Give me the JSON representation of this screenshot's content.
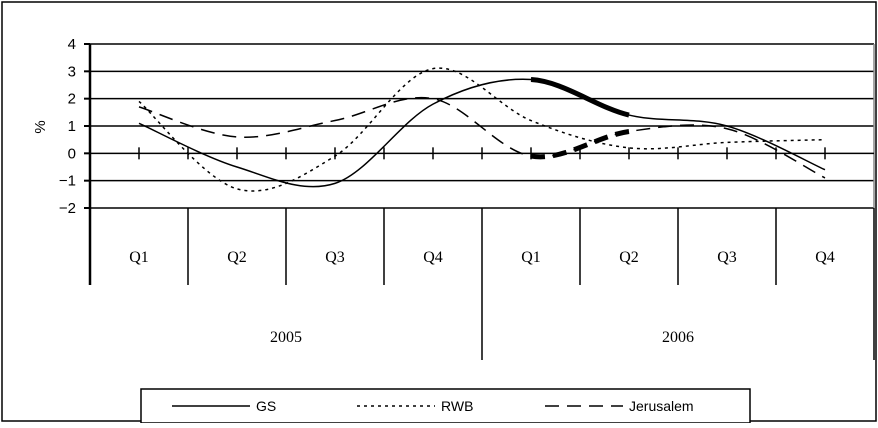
{
  "chart_data": {
    "type": "line",
    "ylabel": "%",
    "ylim": [
      -2,
      4
    ],
    "yticks": [
      -2,
      -1,
      0,
      1,
      2,
      3,
      4
    ],
    "ytick_labels": [
      "−2",
      "−1",
      "0",
      "1",
      "2",
      "3",
      "4"
    ],
    "grid": true,
    "categories": [
      "Q1",
      "Q2",
      "Q3",
      "Q4",
      "Q1",
      "Q2",
      "Q3",
      "Q4"
    ],
    "groups": [
      {
        "label": "2005",
        "span": [
          0,
          3
        ]
      },
      {
        "label": "2006",
        "span": [
          4,
          7
        ]
      }
    ],
    "x": [
      0,
      1,
      2,
      3,
      4,
      5,
      6,
      7
    ],
    "series": [
      {
        "name": "GS",
        "style": "solid",
        "values": [
          1.1,
          -0.5,
          -1.1,
          1.8,
          2.7,
          1.4,
          1.0,
          -0.6
        ],
        "bold_segment": [
          4,
          5
        ]
      },
      {
        "name": "RWB",
        "style": "dotted",
        "values": [
          1.9,
          -1.3,
          -0.1,
          3.1,
          1.2,
          0.2,
          0.4,
          0.5
        ]
      },
      {
        "name": "Jerusalem",
        "style": "dashed",
        "values": [
          1.7,
          0.6,
          1.2,
          2.0,
          -0.1,
          0.8,
          0.9,
          -0.9
        ],
        "bold_segment": [
          4,
          5
        ]
      }
    ],
    "legend_position": "bottom",
    "colors": {
      "line": "#000000",
      "grid": "#000000",
      "background": "#ffffff"
    }
  }
}
